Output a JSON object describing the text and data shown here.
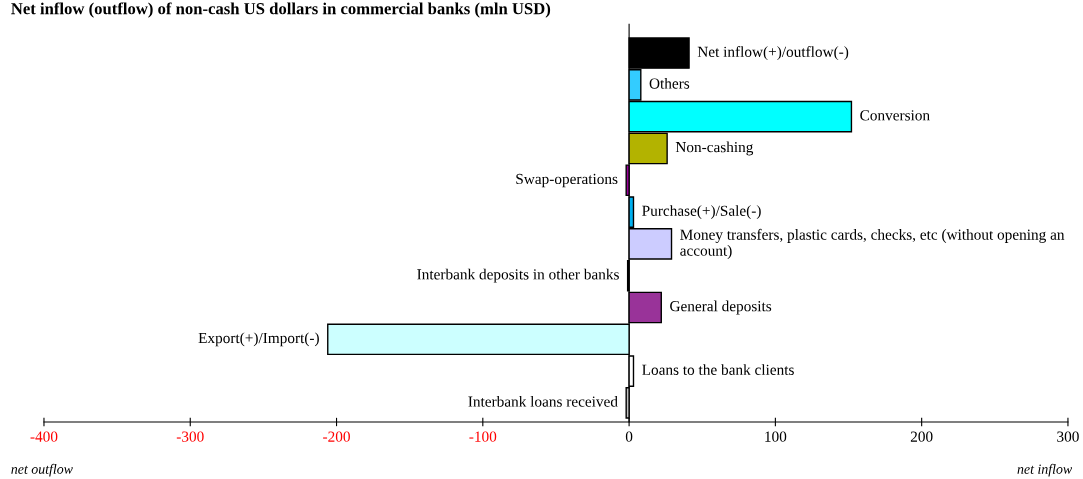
{
  "chart_data": {
    "type": "bar",
    "orientation": "horizontal",
    "title": "Net inflow (outflow) of non-cash US dollars in commercial banks (mln USD)",
    "categories": [
      "Net inflow(+)/outflow(-)",
      "Others",
      "Conversion",
      "Non-cashing",
      "Swap-operations",
      "Purchase(+)/Sale(-)",
      "Money transfers, plastic cards, checks, etc (without opening an account)",
      "Interbank deposits in other banks",
      "General deposits",
      "Export(+)/Import(-)",
      "Loans to the bank clients",
      "Interbank loans received"
    ],
    "values": [
      41,
      8,
      152,
      26,
      -2,
      3,
      29,
      -1,
      22,
      -206,
      3,
      -2
    ],
    "colors": [
      "#000000",
      "#33ccff",
      "#00ffff",
      "#b3b300",
      "#990099",
      "#00b0f0",
      "#ccccff",
      "#000000",
      "#993399",
      "#ccffff",
      "#ffffff",
      "#c0c0c0"
    ],
    "xlim": [
      -400,
      300
    ],
    "xticks": [
      -400,
      -300,
      -200,
      -100,
      0,
      100,
      200,
      300
    ],
    "grid": false,
    "annotations": [
      "net outflow",
      "net inflow"
    ]
  }
}
